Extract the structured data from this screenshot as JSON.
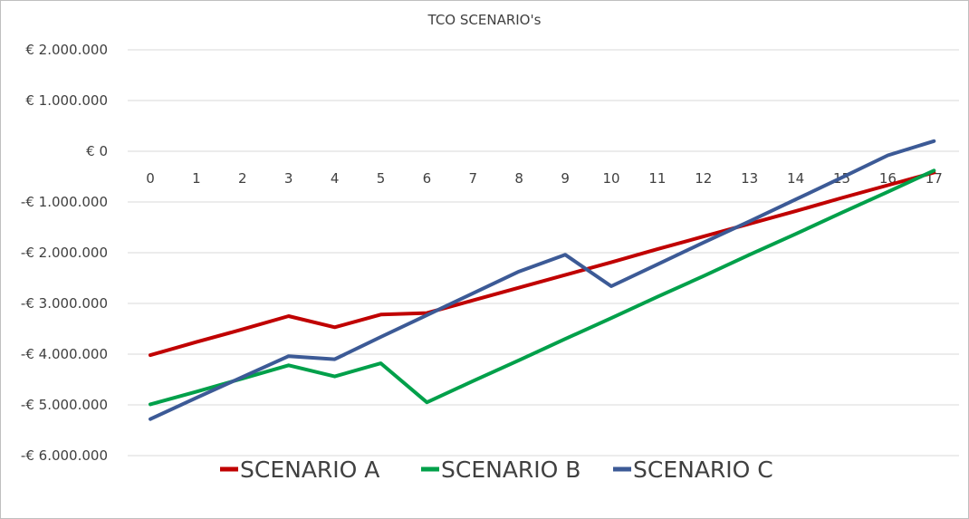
{
  "chart_data": {
    "type": "line",
    "title": "TCO SCENARIO's",
    "xlabel": "",
    "ylabel": "",
    "categories": [
      "0",
      "1",
      "2",
      "3",
      "4",
      "5",
      "6",
      "7",
      "8",
      "9",
      "10",
      "11",
      "12",
      "13",
      "14",
      "15",
      "16",
      "17"
    ],
    "y_tick_labels": [
      "€ 2.000.000",
      "€ 1.000.000",
      "€ 0",
      "-€ 1.000.000",
      "-€ 2.000.000",
      "-€ 3.000.000",
      "-€ 4.000.000",
      "-€ 5.000.000",
      "-€ 6.000.000"
    ],
    "y_ticks": [
      2000000,
      1000000,
      0,
      -1000000,
      -2000000,
      -3000000,
      -4000000,
      -5000000,
      -6000000
    ],
    "ylim": [
      -6000000,
      2000000
    ],
    "grid": true,
    "legend_position": "bottom",
    "series": [
      {
        "name": "SCENARIO A",
        "color": "#c00000",
        "values": [
          -4020000,
          -3760000,
          -3510000,
          -3250000,
          -3470000,
          -3220000,
          -3190000,
          -2940000,
          -2690000,
          -2440000,
          -2190000,
          -1930000,
          -1680000,
          -1430000,
          -1180000,
          -920000,
          -670000,
          -420000
        ]
      },
      {
        "name": "SCENARIO B",
        "color": "#00a04a",
        "values": [
          -4990000,
          -4740000,
          -4480000,
          -4220000,
          -4440000,
          -4180000,
          -4950000,
          -4530000,
          -4120000,
          -3700000,
          -3290000,
          -2870000,
          -2460000,
          -2040000,
          -1630000,
          -1210000,
          -800000,
          -380000
        ]
      },
      {
        "name": "SCENARIO C",
        "color": "#3c5a96",
        "values": [
          -5280000,
          -4860000,
          -4450000,
          -4040000,
          -4100000,
          -3660000,
          -3230000,
          -2800000,
          -2370000,
          -2040000,
          -2660000,
          -2230000,
          -1800000,
          -1380000,
          -950000,
          -520000,
          -80000,
          200000
        ]
      }
    ]
  }
}
